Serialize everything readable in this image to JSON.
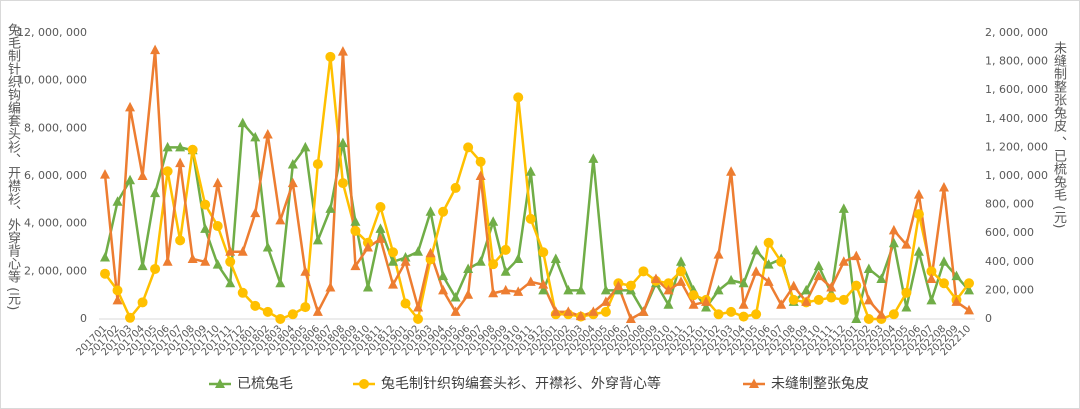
{
  "chart_data": {
    "type": "line",
    "y_label": "兔毛制针织钩编套头衫、开襟衫、外穿背心等 (元)",
    "y2_label": "未缝制整张兔皮 、已梳兔毛 (元)",
    "categories": [
      "201701",
      "201702",
      "201703",
      "201704",
      "201705",
      "201706",
      "201707",
      "201708",
      "201709",
      "201710",
      "201711",
      "201712",
      "201801",
      "201802",
      "201803",
      "201804",
      "201805",
      "201806",
      "201807",
      "201808",
      "201809",
      "201810",
      "201811",
      "201812",
      "201901",
      "201902",
      "201903",
      "201904",
      "201905",
      "201906",
      "201907",
      "201908",
      "201909",
      "201910",
      "201911",
      "201912",
      "202001",
      "202002",
      "202003",
      "202004",
      "202005",
      "202006",
      "202007",
      "202008",
      "202009",
      "202010",
      "202011",
      "202012",
      "202101",
      "202102",
      "202103",
      "202104",
      "202105",
      "202106",
      "202107",
      "202108",
      "202109",
      "202110",
      "202111",
      "202112",
      "202201",
      "202202",
      "202203",
      "202204",
      "202205",
      "202206",
      "202207",
      "202208",
      "202209",
      "202210"
    ],
    "ylim": [
      0,
      12000000
    ],
    "yticks": [
      0,
      {
        "value": 2000000,
        "label": "2, 000, 000"
      },
      {
        "value": 4000000,
        "label": "4, 000, 000"
      },
      {
        "value": 6000000,
        "label": "6, 000, 000"
      },
      {
        "value": 8000000,
        "label": "8, 000, 000"
      },
      {
        "value": 10000000,
        "label": "10, 000, 000"
      },
      {
        "value": 12000000,
        "label": "12, 000, 000"
      }
    ],
    "y2lim": [
      0,
      2000000
    ],
    "y2ticks": [
      0,
      {
        "value": 200000,
        "label": "200, 000"
      },
      {
        "value": 400000,
        "label": "400, 000"
      },
      {
        "value": 600000,
        "label": "600, 000"
      },
      {
        "value": 800000,
        "label": "800, 000"
      },
      {
        "value": 1000000,
        "label": "1, 000, 000"
      },
      {
        "value": 1200000,
        "label": "1, 200, 000"
      },
      {
        "value": 1400000,
        "label": "1, 400, 000"
      },
      {
        "value": 1600000,
        "label": "1, 600, 000"
      },
      {
        "value": 1800000,
        "label": "1, 800, 000"
      },
      {
        "value": 2000000,
        "label": "2, 000, 000"
      }
    ],
    "series": [
      {
        "name": "已梳兔毛",
        "color": "#70ad47",
        "marker": "triangle",
        "axis": "y2",
        "values": [
          430000,
          820000,
          970000,
          370000,
          880000,
          1200000,
          1200000,
          1180000,
          630000,
          380000,
          250000,
          1370000,
          1270000,
          500000,
          250000,
          1080000,
          1200000,
          550000,
          770000,
          1230000,
          680000,
          220000,
          630000,
          400000,
          430000,
          470000,
          750000,
          300000,
          150000,
          350000,
          400000,
          680000,
          330000,
          420000,
          1030000,
          200000,
          420000,
          200000,
          200000,
          1120000,
          200000,
          200000,
          200000,
          50000,
          250000,
          100000,
          400000,
          200000,
          80000,
          200000,
          270000,
          250000,
          480000,
          380000,
          420000,
          120000,
          200000,
          370000,
          180000,
          770000,
          0,
          350000,
          280000,
          530000,
          80000,
          470000,
          130000,
          400000,
          300000,
          200000
        ]
      },
      {
        "name": "兔毛制针织钩编套头衫、开襟衫、外穿背心等",
        "color": "#ffc000",
        "marker": "circle",
        "axis": "y",
        "values": [
          1900000,
          1200000,
          50000,
          700000,
          2100000,
          6200000,
          3300000,
          7100000,
          4800000,
          3900000,
          2400000,
          1100000,
          550000,
          300000,
          0,
          200000,
          500000,
          6500000,
          11000000,
          5700000,
          3700000,
          3200000,
          4700000,
          2800000,
          650000,
          0,
          2500000,
          4500000,
          5500000,
          7200000,
          6600000,
          2300000,
          2900000,
          9300000,
          4200000,
          2800000,
          200000,
          200000,
          100000,
          200000,
          300000,
          1500000,
          1400000,
          2000000,
          1600000,
          1500000,
          2000000,
          1000000,
          800000,
          200000,
          300000,
          100000,
          200000,
          3200000,
          2400000,
          800000,
          700000,
          800000,
          900000,
          800000,
          1400000,
          0,
          0,
          200000,
          1100000,
          4400000,
          2000000,
          1500000,
          800000,
          1500000
        ]
      },
      {
        "name": "未缝制整张兔皮",
        "color": "#ed7d31",
        "marker": "triangle",
        "axis": "y2",
        "values": [
          1010000,
          130000,
          1480000,
          1000000,
          1880000,
          400000,
          1090000,
          420000,
          400000,
          950000,
          470000,
          470000,
          740000,
          1290000,
          690000,
          950000,
          330000,
          50000,
          220000,
          1870000,
          370000,
          500000,
          560000,
          240000,
          400000,
          80000,
          460000,
          200000,
          50000,
          170000,
          1000000,
          180000,
          200000,
          190000,
          260000,
          240000,
          50000,
          50000,
          20000,
          50000,
          120000,
          230000,
          0,
          50000,
          280000,
          200000,
          260000,
          100000,
          120000,
          450000,
          1030000,
          100000,
          330000,
          260000,
          100000,
          230000,
          120000,
          300000,
          220000,
          400000,
          440000,
          130000,
          30000,
          620000,
          520000,
          870000,
          280000,
          920000,
          120000,
          60000
        ]
      }
    ]
  }
}
